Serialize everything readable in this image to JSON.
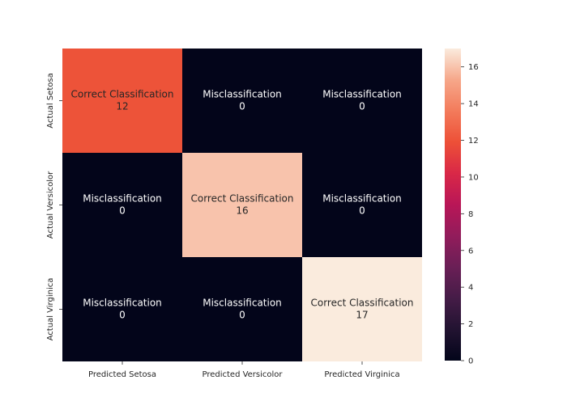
{
  "chart_data": {
    "type": "heatmap",
    "rows": [
      "Actual Setosa",
      "Actual Versicolor",
      "Actual Virginica"
    ],
    "columns": [
      "Predicted Setosa",
      "Predicted Versicolor",
      "Predicted Virginica"
    ],
    "values": [
      [
        12,
        0,
        0
      ],
      [
        0,
        16,
        0
      ],
      [
        0,
        0,
        17
      ]
    ],
    "cell_labels": [
      [
        "Correct Classification",
        "Misclassification",
        "Misclassification"
      ],
      [
        "Misclassification",
        "Correct Classification",
        "Misclassification"
      ],
      [
        "Misclassification",
        "Misclassification",
        "Correct Classification"
      ]
    ],
    "colorbar": {
      "range": [
        0,
        17
      ],
      "ticks": [
        0,
        2,
        4,
        6,
        8,
        10,
        12,
        14,
        16
      ]
    },
    "colormap": "rocket",
    "text_color_dark": "#262626",
    "text_color_light": "#ffffff"
  }
}
